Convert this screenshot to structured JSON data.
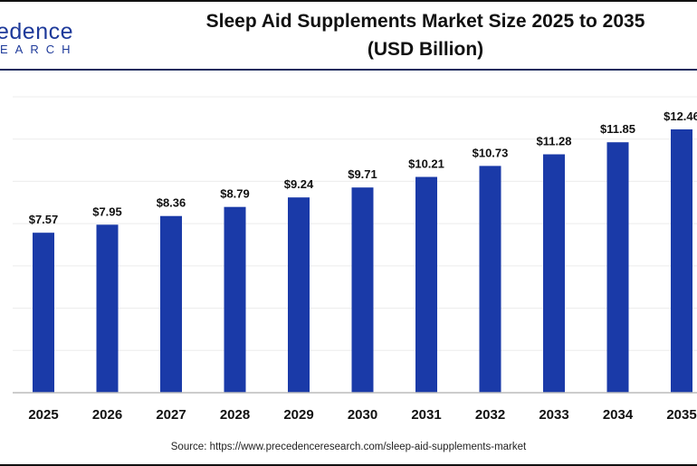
{
  "logo": {
    "line1": "edence",
    "line2": "EARCH"
  },
  "chart_data": {
    "type": "bar",
    "title": "Sleep Aid Supplements Market Size 2025 to 2035",
    "subtitle": "(USD Billion)",
    "categories": [
      "2025",
      "2026",
      "2027",
      "2028",
      "2029",
      "2030",
      "2031",
      "2032",
      "2033",
      "2034",
      "2035"
    ],
    "values": [
      7.57,
      7.95,
      8.36,
      8.79,
      9.24,
      9.71,
      10.21,
      10.73,
      11.28,
      11.85,
      12.46
    ],
    "data_labels": [
      "$7.57",
      "$7.95",
      "$8.36",
      "$8.79",
      "$9.24",
      "$9.71",
      "$10.21",
      "$10.73",
      "$11.28",
      "$11.85",
      "$12.46"
    ],
    "ylim": [
      0,
      14
    ],
    "grid": true,
    "bar_color": "#1a3aa8",
    "xlabel": "",
    "ylabel": ""
  },
  "source": "Source: https://www.precedenceresearch.com/sleep-aid-supplements-market"
}
